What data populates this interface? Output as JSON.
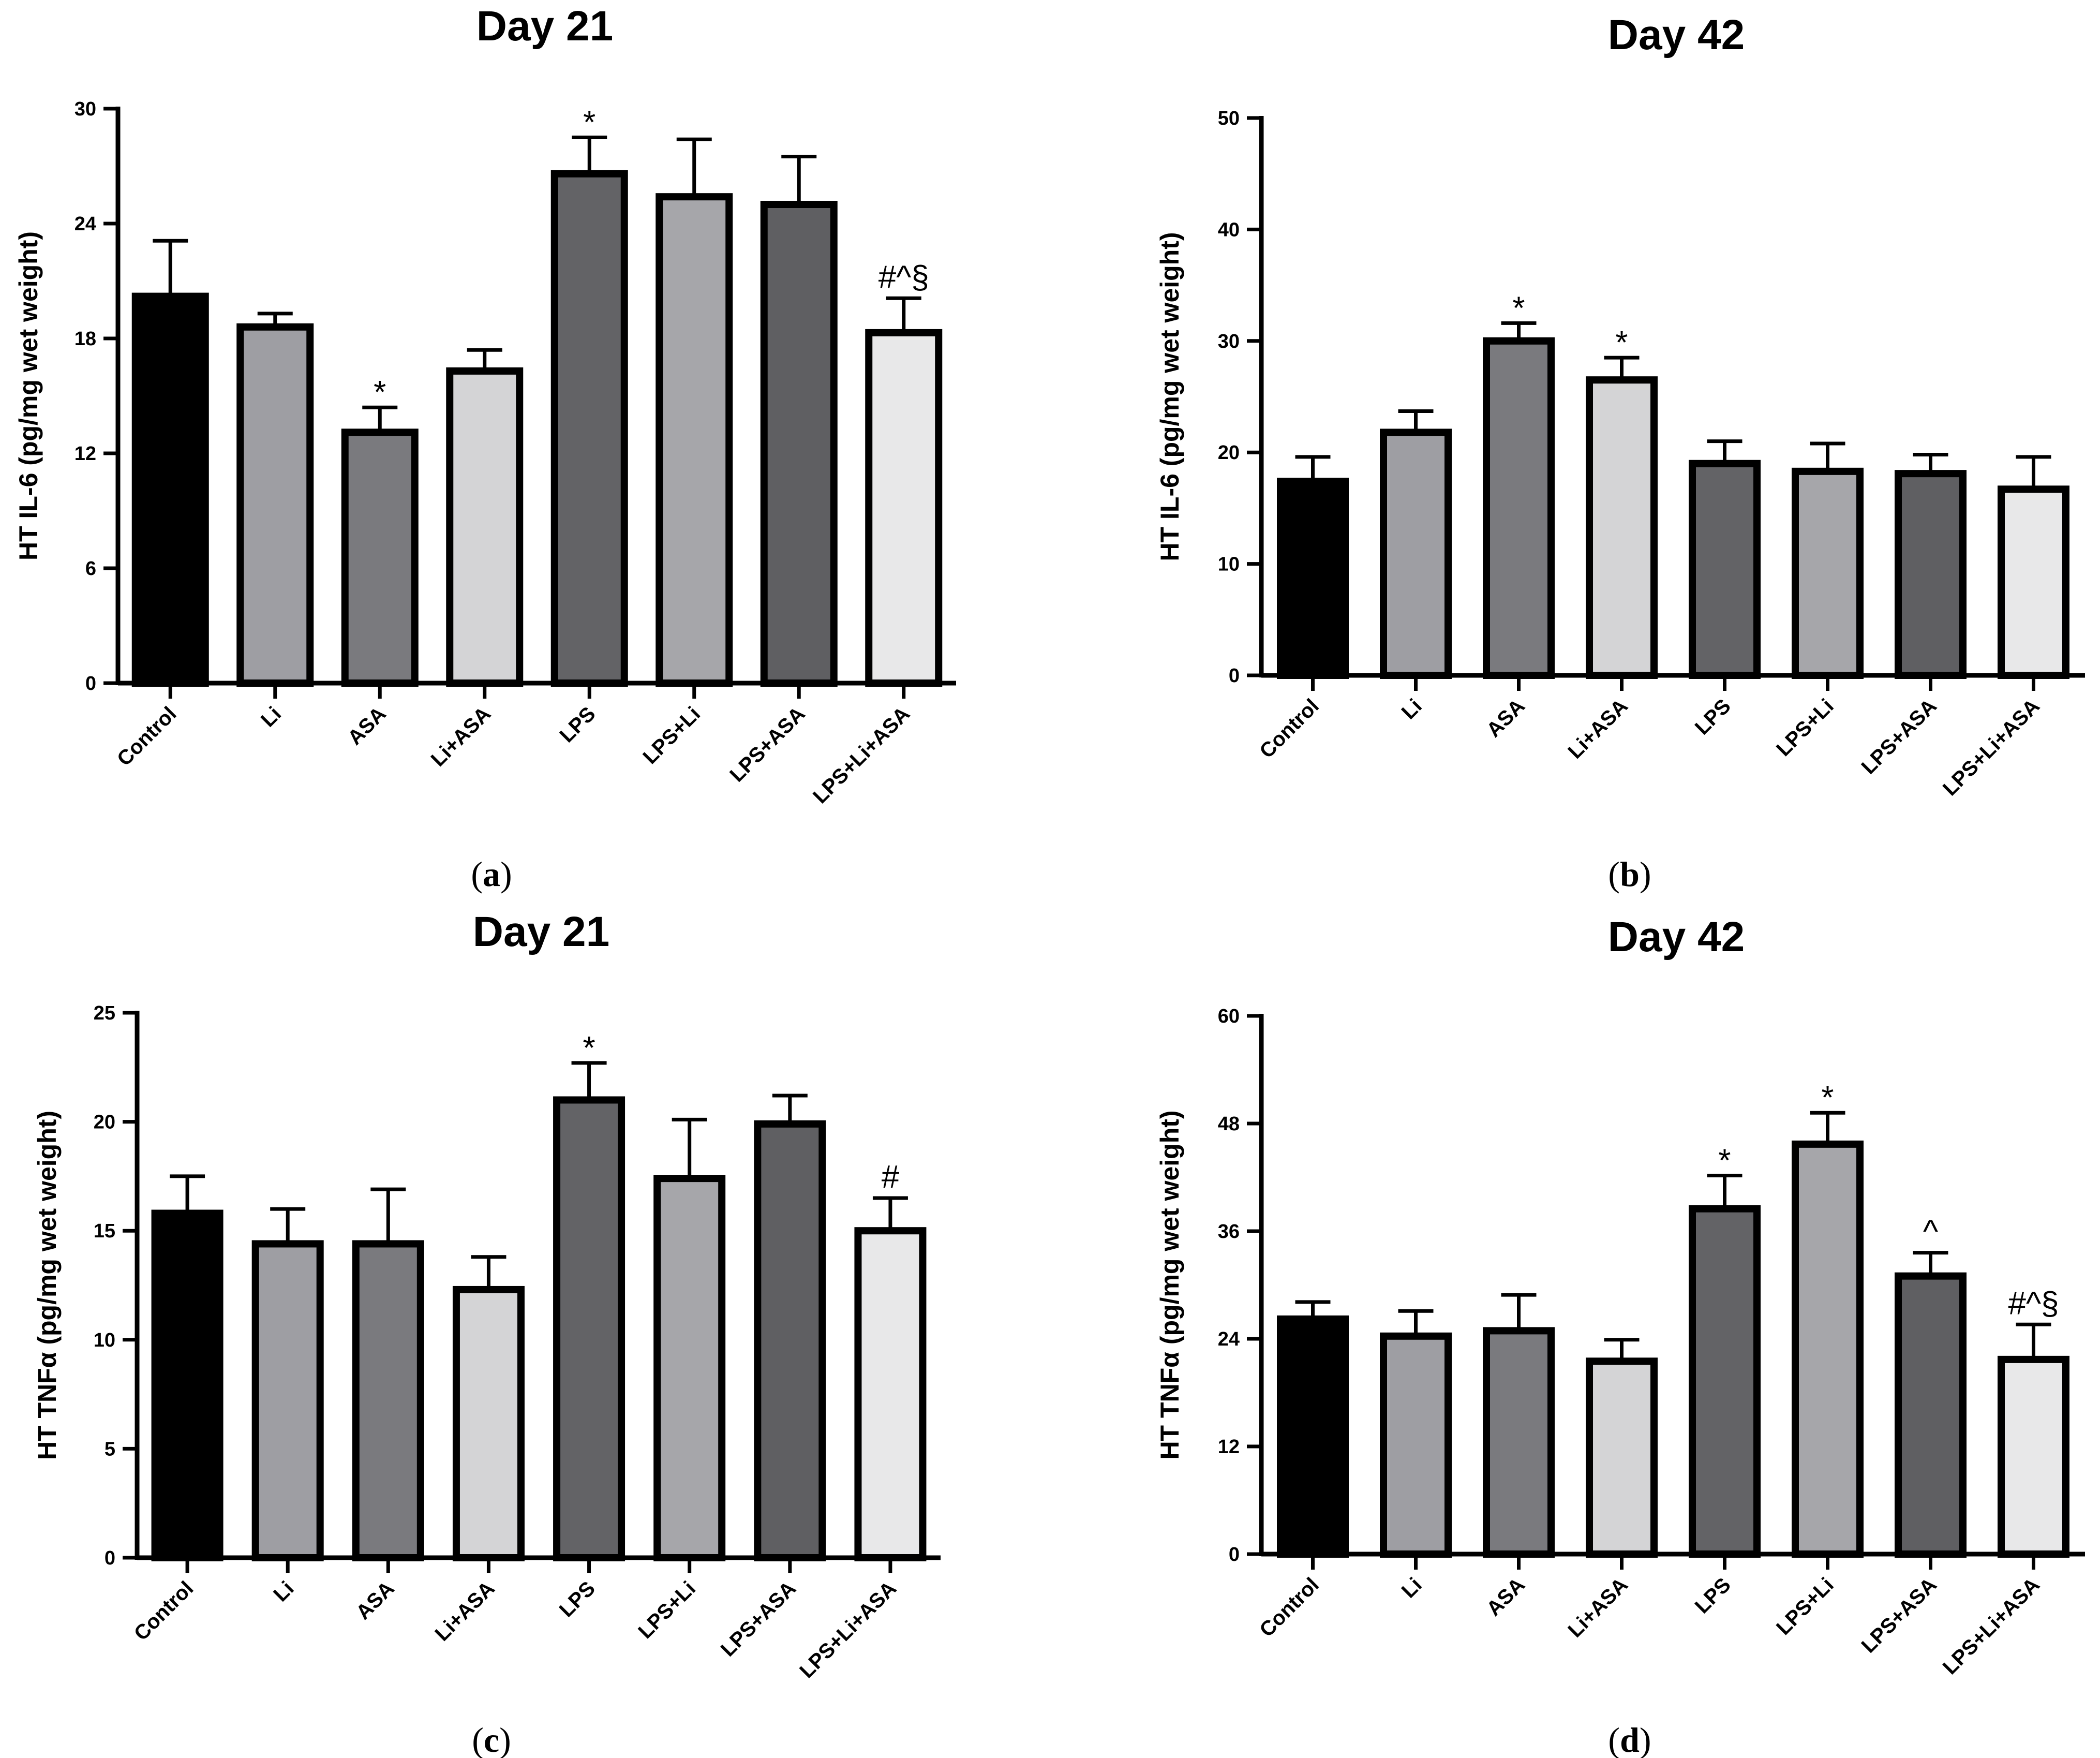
{
  "chart_data": [
    {
      "type": "bar",
      "panel": "(a)",
      "caption_open": "(",
      "caption_letter": "a",
      "caption_close": ")",
      "title": "Day 21",
      "ylabel": "HT IL-6 (pg/mg wet weight)",
      "ylim": [
        0,
        30
      ],
      "yticks": [
        0,
        6,
        12,
        18,
        24,
        30
      ],
      "categories": [
        "Control",
        "Li",
        "ASA",
        "Li+ASA",
        "LPS",
        "LPS+Li",
        "LPS+ASA",
        "LPS+Li+ASA"
      ],
      "values": [
        20.2,
        18.6,
        13.1,
        16.3,
        26.6,
        25.4,
        25.0,
        18.3
      ],
      "errors": [
        2.9,
        0.7,
        1.3,
        1.1,
        1.9,
        3.0,
        2.5,
        1.8
      ],
      "annotations": [
        "",
        "",
        "*",
        "",
        "*",
        "",
        "",
        "#^§"
      ],
      "colors": [
        "#000000",
        "#9e9ea3",
        "#7a7a7e",
        "#d4d4d6",
        "#636366",
        "#a6a6aa",
        "#5f5f62",
        "#e8e8e9"
      ]
    },
    {
      "type": "bar",
      "panel": "(b)",
      "caption_open": "(",
      "caption_letter": "b",
      "caption_close": ")",
      "title": "Day 42",
      "ylabel": "HT IL-6 (pg/mg wet weight)",
      "ylim": [
        0,
        50
      ],
      "yticks": [
        0,
        10,
        20,
        30,
        40,
        50
      ],
      "categories": [
        "Control",
        "Li",
        "ASA",
        "Li+ASA",
        "LPS",
        "LPS+Li",
        "LPS+ASA",
        "LPS+Li+ASA"
      ],
      "values": [
        17.4,
        21.8,
        30.0,
        26.5,
        19.0,
        18.3,
        18.1,
        16.7
      ],
      "errors": [
        2.2,
        1.9,
        1.6,
        2.0,
        2.0,
        2.5,
        1.7,
        2.9
      ],
      "annotations": [
        "",
        "",
        "*",
        "*",
        "",
        "",
        "",
        ""
      ],
      "colors": [
        "#000000",
        "#9e9ea3",
        "#7a7a7e",
        "#d4d4d6",
        "#636366",
        "#a6a6aa",
        "#5f5f62",
        "#e8e8e9"
      ]
    },
    {
      "type": "bar",
      "panel": "(c)",
      "caption_open": "(",
      "caption_letter": "c",
      "caption_close": ")",
      "title": "Day 21",
      "ylabel": "HT TNFα (pg/mg wet weight)",
      "ylim": [
        0,
        25
      ],
      "yticks": [
        0,
        5,
        10,
        15,
        20,
        25
      ],
      "categories": [
        "Control",
        "Li",
        "ASA",
        "Li+ASA",
        "LPS",
        "LPS+Li",
        "LPS+ASA",
        "LPS+Li+ASA"
      ],
      "values": [
        15.8,
        14.4,
        14.4,
        12.3,
        21.0,
        17.4,
        19.9,
        15.0
      ],
      "errors": [
        1.7,
        1.6,
        2.5,
        1.5,
        1.7,
        2.7,
        1.3,
        1.5
      ],
      "annotations": [
        "",
        "",
        "",
        "",
        "*",
        "",
        "",
        "#"
      ],
      "colors": [
        "#000000",
        "#9e9ea3",
        "#7a7a7e",
        "#d4d4d6",
        "#636366",
        "#a6a6aa",
        "#5f5f62",
        "#e8e8e9"
      ]
    },
    {
      "type": "bar",
      "panel": "(d)",
      "caption_open": "(",
      "caption_letter": "d",
      "caption_close": ")",
      "title": "Day 42",
      "ylabel": "HT TNFα (pg/mg wet weight)",
      "ylim": [
        0,
        60
      ],
      "yticks": [
        0,
        12,
        24,
        36,
        48,
        60
      ],
      "categories": [
        "Control",
        "Li",
        "ASA",
        "Li+ASA",
        "LPS",
        "LPS+Li",
        "LPS+ASA",
        "LPS+Li+ASA"
      ],
      "values": [
        26.2,
        24.3,
        24.9,
        21.5,
        38.5,
        45.7,
        31.0,
        21.7
      ],
      "errors": [
        1.9,
        2.8,
        4.0,
        2.4,
        3.7,
        3.5,
        2.6,
        3.9
      ],
      "annotations": [
        "",
        "",
        "",
        "",
        "*",
        "*",
        "^",
        "#^§"
      ],
      "colors": [
        "#000000",
        "#9e9ea3",
        "#7a7a7e",
        "#d4d4d6",
        "#636366",
        "#a6a6aa",
        "#5f5f62",
        "#e8e8e9"
      ]
    }
  ]
}
